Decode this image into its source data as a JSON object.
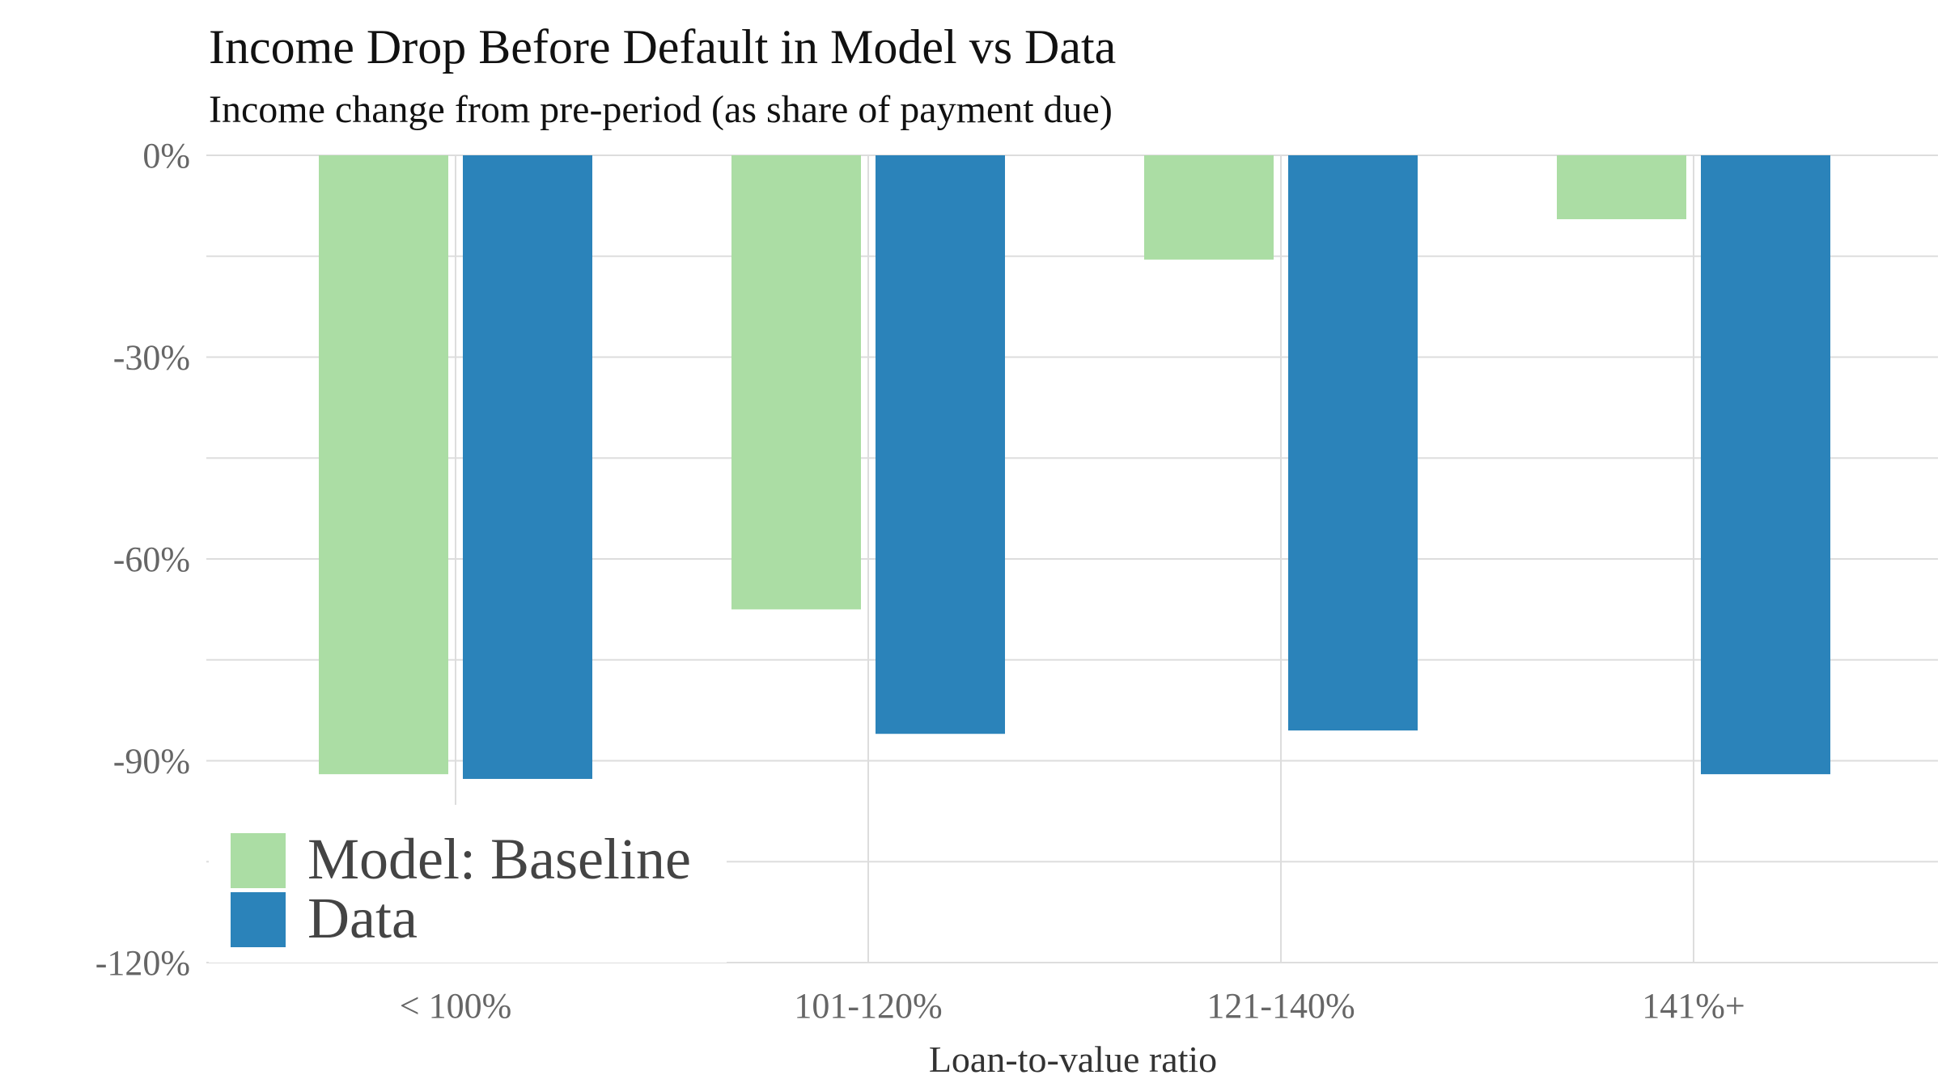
{
  "chart_data": {
    "type": "bar",
    "title": "Income Drop Before Default in Model vs Data",
    "subtitle": "Income change from pre-period (as share of payment due)",
    "xlabel": "Loan-to-value ratio",
    "ylabel": "",
    "categories": [
      "< 100%",
      "101-120%",
      "121-140%",
      "141%+"
    ],
    "series": [
      {
        "name": "Model: Baseline",
        "color": "#abdda4",
        "values": [
          -92,
          -67.5,
          -15.5,
          -9.5
        ]
      },
      {
        "name": "Data",
        "color": "#2b83ba",
        "values": [
          -92.7,
          -86,
          -85.5,
          -92
        ]
      }
    ],
    "ylim": [
      -120,
      0
    ],
    "yticks": [
      0,
      -30,
      -60,
      -90,
      -120
    ],
    "ytick_labels": [
      "0%",
      "-30%",
      "-60%",
      "-90%",
      "-120%"
    ],
    "grid": true,
    "legend_position": "bottom-left"
  }
}
